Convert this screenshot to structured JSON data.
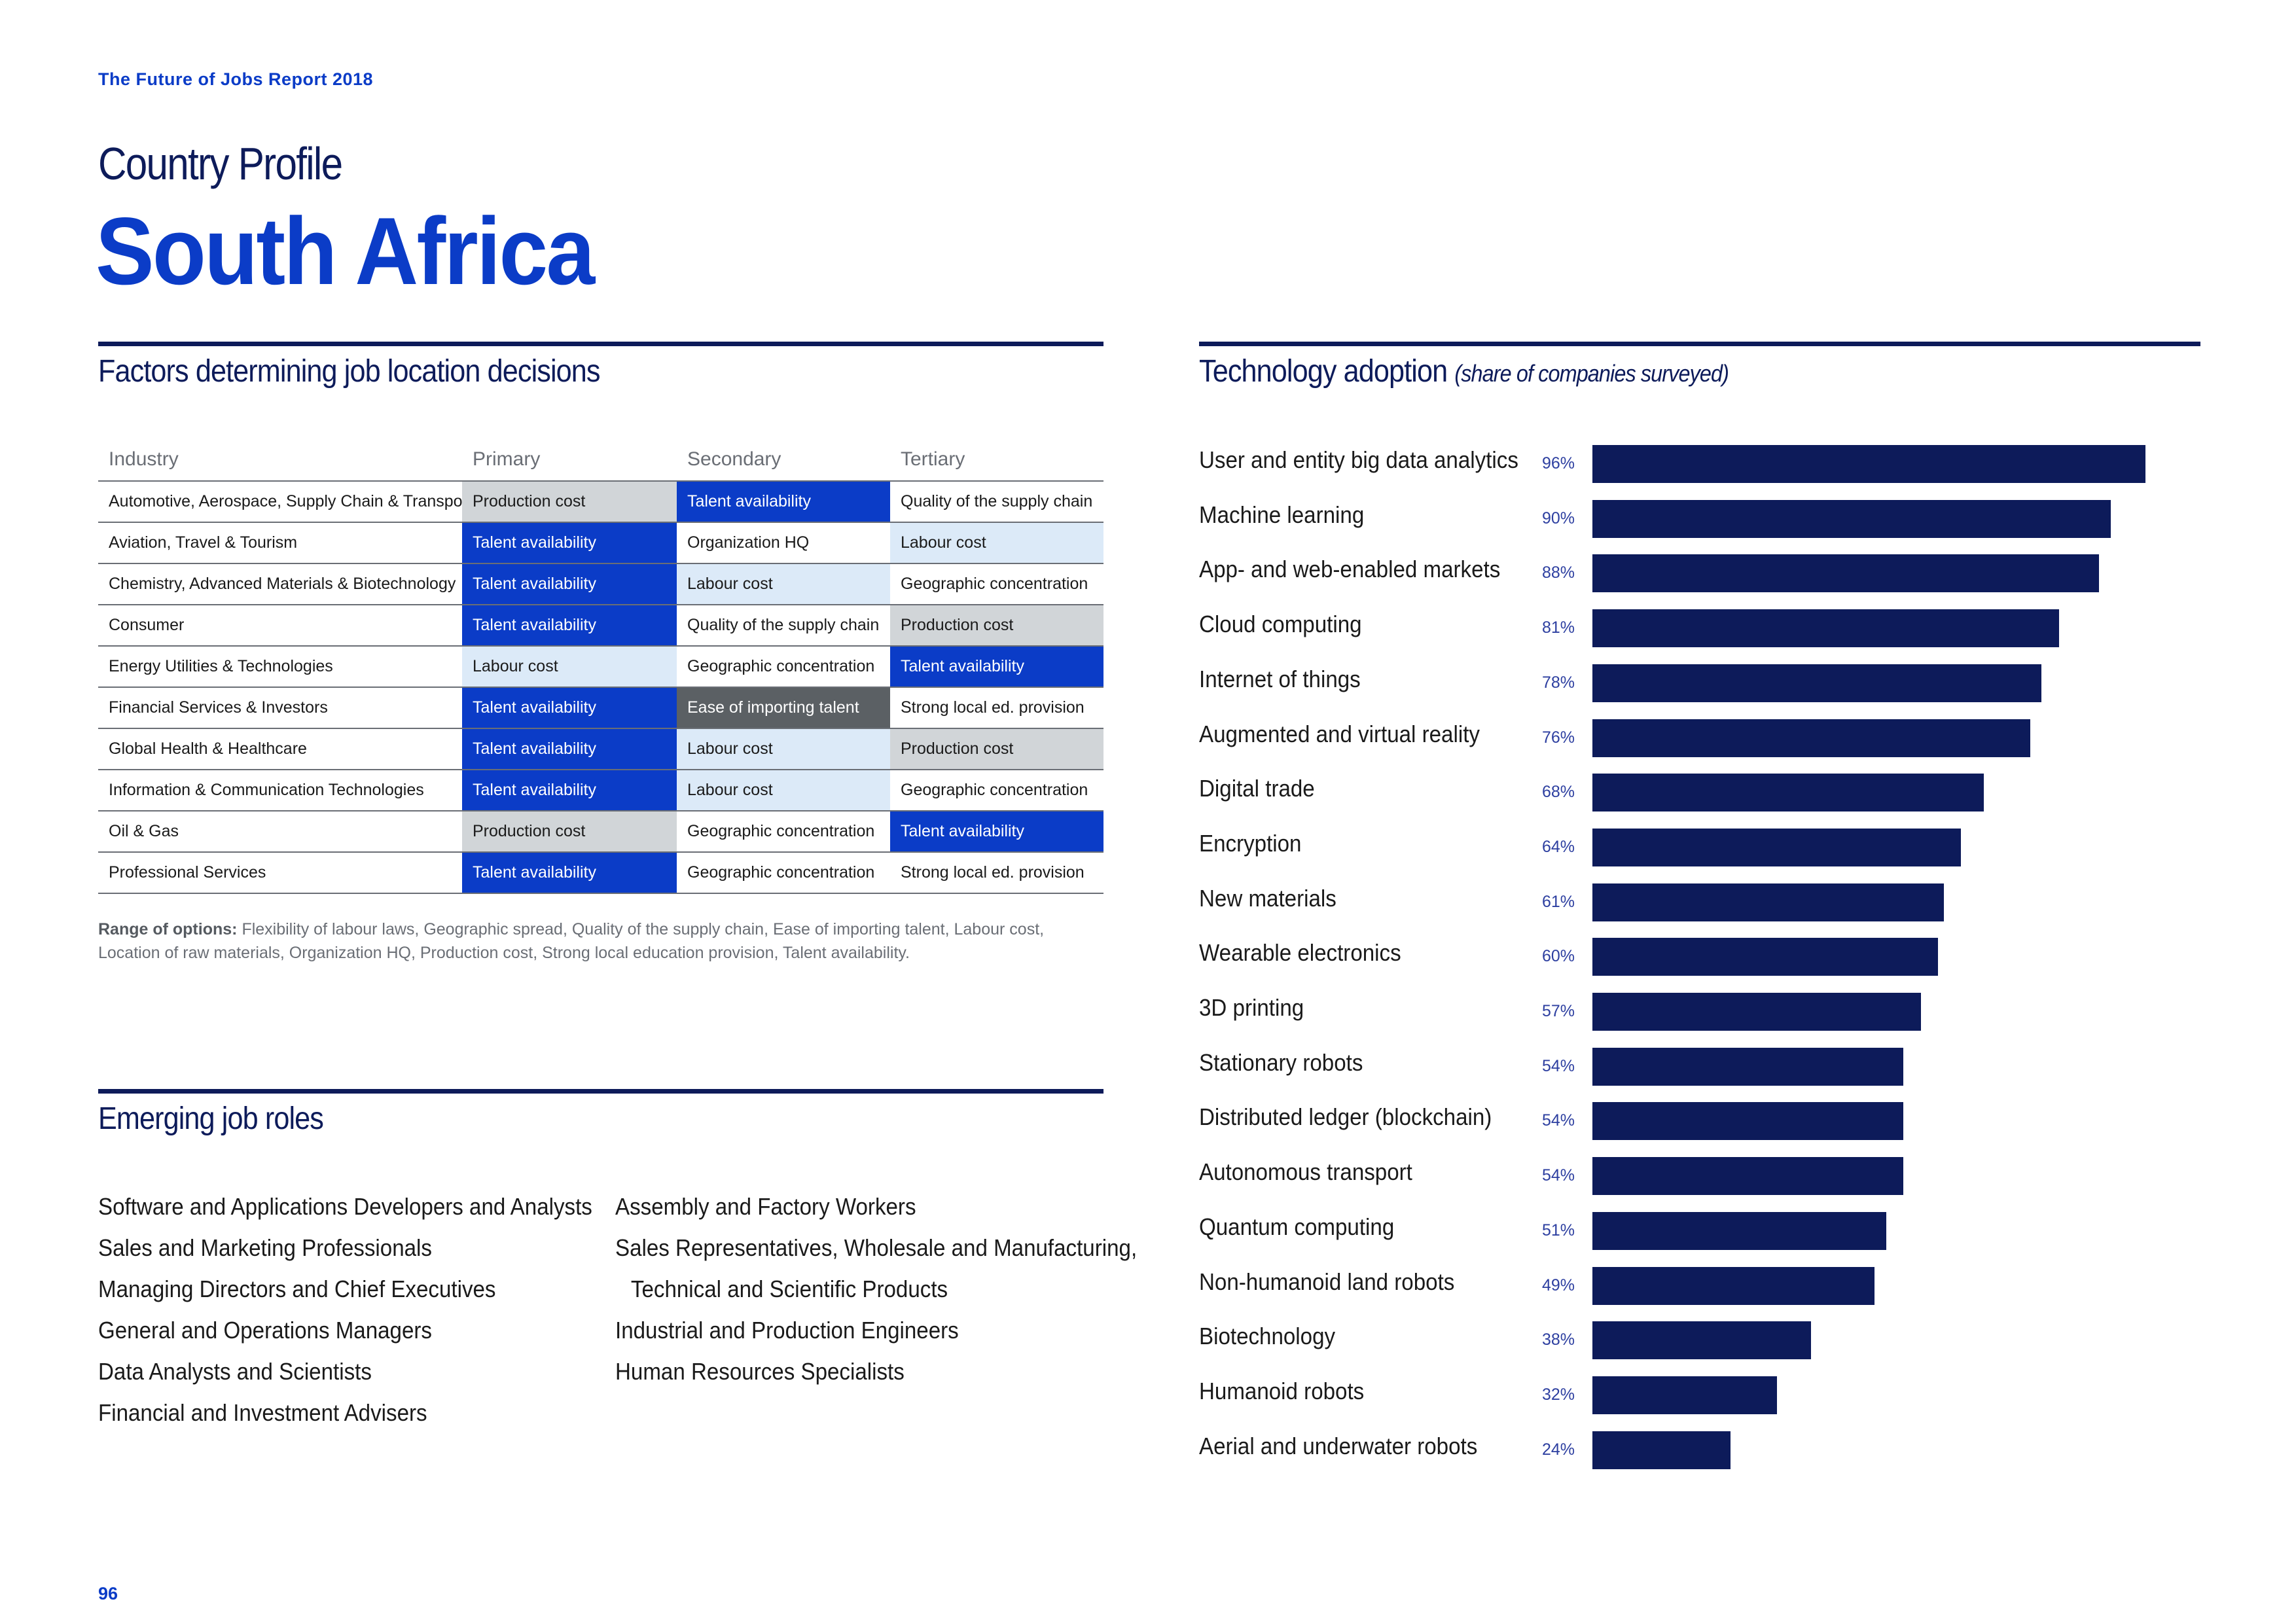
{
  "header": {
    "report_title": "The Future of Jobs Report 2018",
    "pre_title": "Country Profile",
    "country": "South Africa"
  },
  "factors": {
    "title": "Factors determining job location decisions",
    "columns": [
      "Industry",
      "Primary",
      "Secondary",
      "Tertiary"
    ],
    "rows": [
      {
        "industry": "Automotive, Aerospace, Supply Chain & Transport",
        "primary": "Production cost",
        "secondary": "Talent availability",
        "tertiary": "Quality of the supply chain"
      },
      {
        "industry": "Aviation, Travel & Tourism",
        "primary": "Talent availability",
        "secondary": "Organization HQ",
        "tertiary": "Labour cost"
      },
      {
        "industry": "Chemistry, Advanced Materials & Biotechnology",
        "primary": "Talent availability",
        "secondary": "Labour cost",
        "tertiary": "Geographic concentration"
      },
      {
        "industry": "Consumer",
        "primary": "Talent availability",
        "secondary": "Quality of the supply chain",
        "tertiary": "Production cost"
      },
      {
        "industry": "Energy Utilities & Technologies",
        "primary": "Labour cost",
        "secondary": "Geographic concentration",
        "tertiary": "Talent availability"
      },
      {
        "industry": "Financial Services & Investors",
        "primary": "Talent availability",
        "secondary": "Ease of importing talent",
        "tertiary": "Strong local ed. provision"
      },
      {
        "industry": "Global Health & Healthcare",
        "primary": "Talent availability",
        "secondary": "Labour cost",
        "tertiary": "Production cost"
      },
      {
        "industry": "Information & Communication Technologies",
        "primary": "Talent availability",
        "secondary": "Labour cost",
        "tertiary": "Geographic concentration"
      },
      {
        "industry": "Oil & Gas",
        "primary": "Production cost",
        "secondary": "Geographic concentration",
        "tertiary": "Talent availability"
      },
      {
        "industry": "Professional Services",
        "primary": "Talent availability",
        "secondary": "Geographic concentration",
        "tertiary": "Strong local ed. provision"
      }
    ],
    "range_label": "Range of options:",
    "range_text": "Flexibility of labour laws, Geographic spread, Quality of the supply chain, Ease of importing talent, Labour cost, Location of raw materials, Organization HQ, Production cost, Strong local education provision, Talent availability."
  },
  "cell_colors": {
    "Talent availability": "#0b3cc7",
    "Labour cost": "#dceaf8",
    "Production cost": "#d1d5d8",
    "Ease of importing talent": "#5b6064"
  },
  "emerging": {
    "title": "Emerging job roles",
    "col1": [
      "Software and Applications Developers and Analysts",
      "Sales and Marketing Professionals",
      "Managing Directors and Chief Executives",
      "General and Operations Managers",
      "Data Analysts and Scientists",
      "Financial and Investment Advisers"
    ],
    "col2": [
      "Assembly and Factory Workers",
      "Sales Representatives, Wholesale and Manufacturing,",
      "Technical and Scientific Products",
      "Industrial and Production Engineers",
      "Human Resources Specialists"
    ]
  },
  "tech": {
    "title": "Technology adoption",
    "subtitle": "(share of companies surveyed)"
  },
  "chart_data": {
    "type": "bar",
    "orientation": "horizontal",
    "title": "Technology adoption (share of companies surveyed)",
    "categories": [
      "User and entity big data analytics",
      "Machine learning",
      "App- and web-enabled markets",
      "Cloud computing",
      "Internet of things",
      "Augmented and virtual reality",
      "Digital trade",
      "Encryption",
      "New materials",
      "Wearable electronics",
      "3D printing",
      "Stationary robots",
      "Distributed ledger (blockchain)",
      "Autonomous transport",
      "Quantum computing",
      "Non-humanoid land robots",
      "Biotechnology",
      "Humanoid robots",
      "Aerial and underwater robots"
    ],
    "values": [
      96,
      90,
      88,
      81,
      78,
      76,
      68,
      64,
      61,
      60,
      57,
      54,
      54,
      54,
      51,
      49,
      38,
      32,
      24
    ],
    "value_labels": [
      "96%",
      "90%",
      "88%",
      "81%",
      "78%",
      "76%",
      "68%",
      "64%",
      "61%",
      "60%",
      "57%",
      "54%",
      "54%",
      "54%",
      "51%",
      "49%",
      "38%",
      "32%",
      "24%"
    ],
    "xlim": [
      0,
      100
    ],
    "unit": "%",
    "grid": false,
    "bar_color": "#0d1b5a"
  },
  "footer": {
    "page_number": "96"
  }
}
